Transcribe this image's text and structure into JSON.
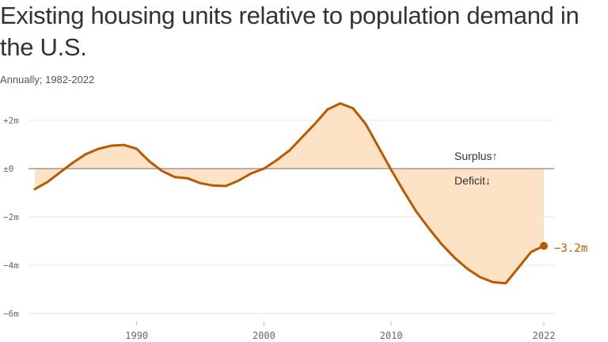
{
  "title": "Existing housing units relative to population demand in the U.S.",
  "subtitle": "Annually; 1982-2022",
  "colors": {
    "line": "#b85a00",
    "fill": "#fde2c6",
    "grid": "#e6e6e6",
    "zero_line": "#9a9a9a"
  },
  "chart_data": {
    "type": "area",
    "title": "Existing housing units relative to population demand in the U.S.",
    "subtitle": "Annually; 1982-2022",
    "xlabel": "",
    "ylabel": "",
    "xlim": [
      1982,
      2022
    ],
    "ylim": [
      -6,
      3
    ],
    "grid": true,
    "x_ticks": [
      {
        "value": 1990,
        "label": "1990"
      },
      {
        "value": 2000,
        "label": "2000"
      },
      {
        "value": 2010,
        "label": "2010"
      },
      {
        "value": 2022,
        "label": "2022"
      }
    ],
    "y_ticks": [
      {
        "value": 2,
        "label": "+2m"
      },
      {
        "value": 0,
        "label": "±0"
      },
      {
        "value": -2,
        "label": "−2m"
      },
      {
        "value": -4,
        "label": "−4m"
      },
      {
        "value": -6,
        "label": "−6m"
      }
    ],
    "annotations": {
      "surplus": "Surplus↑",
      "deficit": "Deficit↓",
      "end_value": "−3.2m"
    },
    "series": [
      {
        "x": [
          1982,
          1983,
          1984,
          1985,
          1986,
          1987,
          1988,
          1989,
          1990,
          1991,
          1992,
          1993,
          1994,
          1995,
          1996,
          1997,
          1998,
          1999,
          2000,
          2001,
          2002,
          2003,
          2004,
          2005,
          2006,
          2007,
          2008,
          2009,
          2010,
          2011,
          2012,
          2013,
          2014,
          2015,
          2016,
          2017,
          2018,
          2019,
          2020,
          2021,
          2022
        ],
        "values": [
          -0.85,
          -0.55,
          -0.15,
          0.25,
          0.6,
          0.82,
          0.95,
          0.98,
          0.82,
          0.3,
          -0.1,
          -0.35,
          -0.4,
          -0.6,
          -0.7,
          -0.72,
          -0.5,
          -0.2,
          0.0,
          0.35,
          0.75,
          1.3,
          1.85,
          2.45,
          2.7,
          2.5,
          1.85,
          0.9,
          -0.05,
          -0.95,
          -1.8,
          -2.5,
          -3.15,
          -3.7,
          -4.15,
          -4.5,
          -4.7,
          -4.75,
          -4.1,
          -3.45,
          -3.2
        ]
      }
    ]
  }
}
